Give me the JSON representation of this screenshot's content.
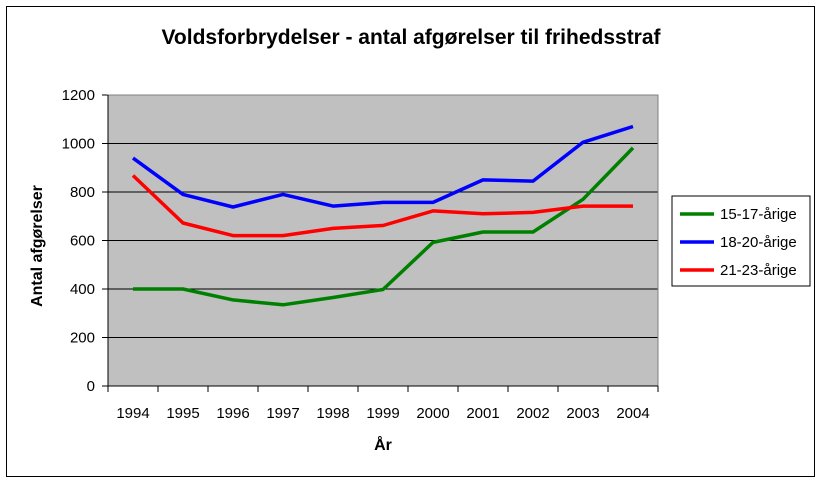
{
  "chart_data": {
    "type": "line",
    "title": "Voldsforbrydelser - antal afgørelser til frihedsstraf",
    "xlabel": "År",
    "ylabel": "Antal afgørelser",
    "categories": [
      "1994",
      "1995",
      "1996",
      "1997",
      "1998",
      "1999",
      "2000",
      "2001",
      "2002",
      "2003",
      "2004"
    ],
    "ylim": [
      0,
      1200
    ],
    "yticks": [
      0,
      200,
      400,
      600,
      800,
      1000,
      1200
    ],
    "grid": true,
    "legend_position": "right",
    "plot_background": "#C0C0C0",
    "series": [
      {
        "name": "15-17-årige",
        "color": "#008000",
        "values": [
          400,
          400,
          355,
          335,
          365,
          398,
          592,
          635,
          635,
          770,
          982
        ]
      },
      {
        "name": "18-20-årige",
        "color": "#0000FF",
        "values": [
          940,
          790,
          738,
          790,
          742,
          757,
          757,
          850,
          845,
          1005,
          1070
        ]
      },
      {
        "name": "21-23-årige",
        "color": "#FF0000",
        "values": [
          868,
          672,
          620,
          620,
          650,
          662,
          722,
          710,
          716,
          742,
          742
        ]
      }
    ]
  }
}
